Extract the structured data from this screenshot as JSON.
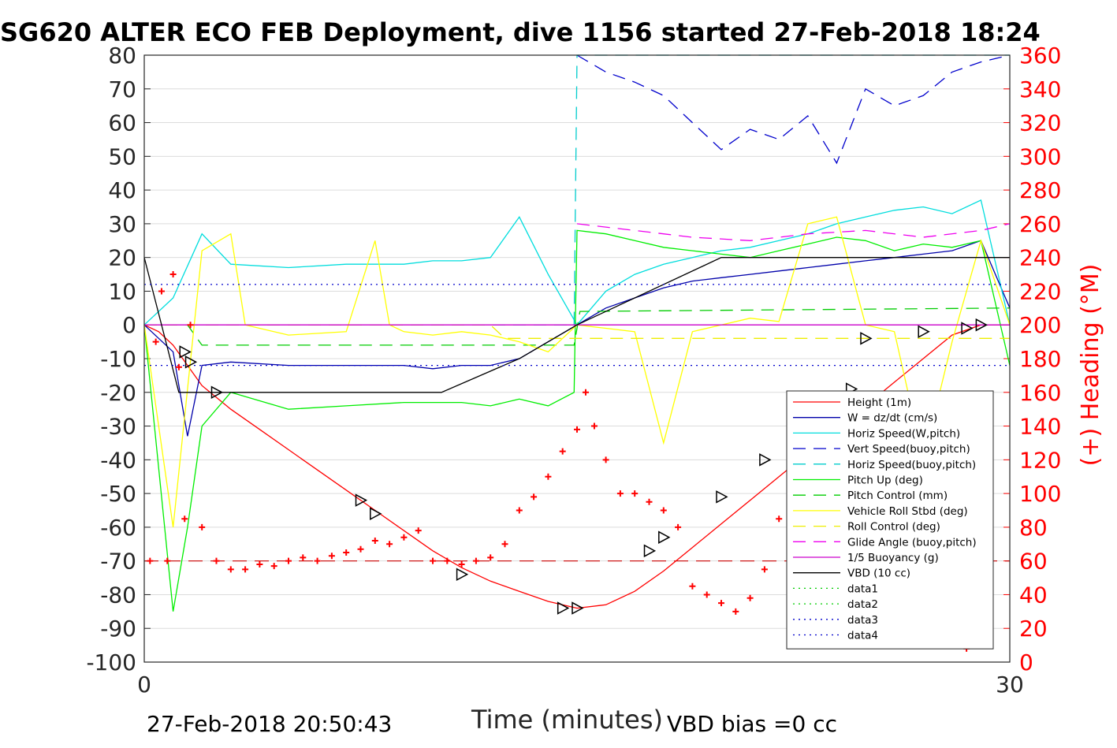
{
  "chart_data": {
    "type": "line",
    "title": "SG620 ALTER ECO FEB Deployment, dive 1156 started 27-Feb-2018 18:24",
    "xlabel": "Time (minutes)",
    "ylabel_right": "(+) Heading (°M)",
    "xlim": [
      0,
      30
    ],
    "ylim": [
      -100,
      80
    ],
    "ylim_right": [
      0,
      360
    ],
    "x_ticks": [
      "0",
      "30"
    ],
    "y_ticks": [
      "80",
      "70",
      "60",
      "50",
      "40",
      "30",
      "20",
      "10",
      "0",
      "-10",
      "-20",
      "-30",
      "-40",
      "-50",
      "-60",
      "-70",
      "-80",
      "-90",
      "-100"
    ],
    "y_right_ticks": [
      "360",
      "340",
      "320",
      "300",
      "280",
      "260",
      "240",
      "220",
      "200",
      "180",
      "160",
      "140",
      "120",
      "100",
      "80",
      "60",
      "40",
      "20",
      "0"
    ],
    "grid": true,
    "legend_position": "lower-right",
    "footer_left": "27-Feb-2018 20:50:43",
    "footer_right": "VBD bias =0 cc",
    "reference_lines": [
      {
        "name": "data1",
        "y": -70,
        "color": "#cc0000",
        "dash": "long"
      }
    ],
    "series": [
      {
        "name": "Height (1m)",
        "color": "#ff0000",
        "style": "solid",
        "x": [
          0,
          0.5,
          1,
          1.5,
          2,
          3,
          4,
          5,
          6,
          7,
          8,
          9,
          10,
          11,
          12,
          13,
          14,
          15,
          16,
          17,
          18,
          19,
          20,
          21,
          22,
          23,
          24,
          25,
          26,
          27,
          28,
          29,
          30
        ],
        "y": [
          0,
          -2,
          -6,
          -12,
          -18,
          -25,
          -31,
          -37,
          -43,
          -49,
          -55,
          -61,
          -67,
          -72,
          -76,
          -79,
          -82,
          -84,
          -83,
          -79,
          -73,
          -66,
          -59,
          -52,
          -45,
          -38,
          -31,
          -24,
          -17,
          -10,
          -3,
          0,
          0
        ]
      },
      {
        "name": "W = dz/dt (cm/s)",
        "color": "#0000aa",
        "style": "solid",
        "x": [
          0,
          1,
          1.5,
          2,
          3,
          5,
          7,
          9,
          10,
          11,
          12,
          13,
          14,
          15,
          16,
          17,
          18,
          19,
          20,
          21,
          22,
          23,
          24,
          25,
          26,
          27,
          28,
          29,
          30
        ],
        "y": [
          0,
          -8,
          -33,
          -12,
          -11,
          -12,
          -12,
          -12,
          -13,
          -12,
          -12,
          -10,
          -5,
          0,
          5,
          8,
          11,
          13,
          14,
          15,
          16,
          17,
          18,
          19,
          20,
          21,
          22,
          25,
          5
        ]
      },
      {
        "name": "Horiz Speed(W,pitch)",
        "color": "#00dddd",
        "style": "solid",
        "x": [
          0,
          1,
          2,
          3,
          5,
          7,
          9,
          10,
          11,
          12,
          13,
          14,
          15,
          16,
          17,
          18,
          19,
          20,
          21,
          22,
          23,
          24,
          25,
          26,
          27,
          28,
          29,
          30
        ],
        "y": [
          0,
          8,
          27,
          18,
          17,
          18,
          18,
          19,
          19,
          20,
          32,
          15,
          0,
          10,
          15,
          18,
          20,
          22,
          23,
          25,
          27,
          30,
          32,
          34,
          35,
          33,
          37,
          0
        ]
      },
      {
        "name": "Vert Speed(buoy,pitch)",
        "color": "#0000cc",
        "style": "dash",
        "x": [
          15,
          16,
          17,
          18,
          19,
          20,
          21,
          22,
          23,
          24,
          25,
          26,
          27,
          28,
          29,
          30
        ],
        "y": [
          80,
          75,
          72,
          68,
          60,
          52,
          58,
          55,
          62,
          48,
          70,
          65,
          68,
          75,
          78,
          80
        ]
      },
      {
        "name": "Horiz Speed(buoy,pitch)",
        "color": "#00cccc",
        "style": "dash",
        "x": [
          0,
          14.9,
          15,
          30
        ],
        "y": [
          0,
          0,
          80,
          80
        ]
      },
      {
        "name": "Pitch Up (deg)",
        "color": "#00ee00",
        "style": "solid",
        "x": [
          0,
          1,
          1.5,
          2,
          3,
          5,
          7,
          9,
          10,
          11,
          12,
          13,
          14,
          14.9,
          15,
          16,
          17,
          18,
          19,
          20,
          21,
          22,
          23,
          24,
          25,
          26,
          27,
          28,
          29,
          30
        ],
        "y": [
          0,
          -85,
          -60,
          -30,
          -20,
          -25,
          -24,
          -23,
          -23,
          -23,
          -24,
          -22,
          -24,
          -20,
          28,
          27,
          25,
          23,
          22,
          21,
          20,
          22,
          24,
          26,
          25,
          22,
          24,
          23,
          25,
          -12
        ]
      },
      {
        "name": "Pitch Control (mm)",
        "color": "#00cc00",
        "style": "dash",
        "x": [
          0,
          1.5,
          2,
          14.9,
          15.1,
          30
        ],
        "y": [
          0,
          0,
          -6,
          -6,
          4,
          5
        ]
      },
      {
        "name": "Vehicle Roll Stbd (deg)",
        "color": "#ffff00",
        "style": "solid",
        "x": [
          0,
          1,
          2,
          3,
          3.5,
          5,
          7,
          8,
          8.5,
          9,
          10,
          11,
          12,
          13,
          14,
          15,
          16,
          17,
          18,
          19,
          20,
          21,
          22,
          23,
          24,
          25,
          26,
          27,
          28,
          29,
          30
        ],
        "y": [
          0,
          -60,
          22,
          27,
          0,
          -3,
          -2,
          25,
          0,
          -2,
          -3,
          -2,
          -3,
          -5,
          -8,
          0,
          -1,
          -2,
          -35,
          -2,
          0,
          2,
          1,
          30,
          32,
          0,
          -2,
          -40,
          -5,
          25,
          0
        ]
      },
      {
        "name": "Roll Control (deg)",
        "color": "#eeee00",
        "style": "dash",
        "x": [
          0,
          12,
          12.5,
          15,
          30
        ],
        "y": [
          0,
          0,
          -4,
          -4,
          -4
        ]
      },
      {
        "name": "Glide Angle (buoy,pitch)",
        "color": "#ee00ee",
        "style": "dash",
        "x": [
          15,
          17,
          19,
          21,
          23,
          25,
          27,
          29,
          30
        ],
        "y": [
          30,
          28,
          26,
          25,
          27,
          28,
          26,
          28,
          30
        ]
      },
      {
        "name": "1/5 Buoyancy (g)",
        "color": "#cc00cc",
        "style": "solid",
        "x": [
          0,
          30
        ],
        "y": [
          0,
          0
        ]
      },
      {
        "name": "VBD (10 cc)",
        "color": "#000000",
        "style": "solid",
        "x": [
          0,
          1.2,
          10.3,
          13,
          15,
          20,
          22,
          30
        ],
        "y": [
          20,
          -20,
          -20,
          -10,
          0,
          20,
          20,
          20
        ]
      },
      {
        "name": "data1",
        "color": "#00cc00",
        "style": "dot",
        "x": [],
        "y": []
      },
      {
        "name": "data2",
        "color": "#00cc00",
        "style": "dot",
        "x": [],
        "y": []
      },
      {
        "name": "data3",
        "color": "#0000cc",
        "style": "dot",
        "x": [
          0,
          30
        ],
        "y": [
          12,
          12
        ]
      },
      {
        "name": "data4",
        "color": "#0000cc",
        "style": "dot",
        "x": [
          0,
          30
        ],
        "y": [
          -12,
          -12
        ]
      }
    ],
    "heading_points": {
      "name": "(+) Heading (°M)",
      "axis": "right",
      "color": "#ff0000",
      "marker": "+",
      "x": [
        0.2,
        0.4,
        0.6,
        0.8,
        1,
        1.2,
        1.4,
        1.6,
        2,
        2.5,
        3,
        3.5,
        4,
        4.5,
        5,
        5.5,
        6,
        6.5,
        7,
        7.5,
        8,
        8.5,
        9,
        9.5,
        10,
        10.5,
        11,
        11.5,
        12,
        12.5,
        13,
        13.5,
        14,
        14.5,
        15,
        15.3,
        15.6,
        16,
        16.5,
        17,
        17.5,
        18,
        18.5,
        19,
        19.5,
        20,
        20.5,
        21,
        21.5,
        22,
        22.5,
        23,
        23.5,
        24,
        24.5,
        25,
        25.5,
        26,
        26.5,
        27,
        27.5,
        28,
        28.5,
        29
      ],
      "y": [
        60,
        190,
        220,
        60,
        230,
        175,
        85,
        200,
        80,
        60,
        55,
        55,
        58,
        57,
        60,
        62,
        60,
        63,
        65,
        67,
        72,
        70,
        74,
        78,
        60,
        60,
        58,
        60,
        62,
        70,
        90,
        98,
        110,
        125,
        138,
        160,
        140,
        120,
        100,
        100,
        95,
        90,
        80,
        45,
        40,
        35,
        30,
        38,
        55,
        85,
        95,
        90,
        98,
        95,
        92,
        80,
        60,
        45,
        35,
        25,
        15,
        10,
        8,
        10
      ]
    },
    "markers": {
      "type": "triangle",
      "x": [
        1.4,
        1.6,
        2.5,
        7.5,
        8,
        11,
        14.5,
        15,
        17.5,
        18,
        20,
        21.5,
        23,
        24.5,
        25,
        27,
        28.5,
        29
      ],
      "y": [
        -8,
        -11,
        -20,
        -52,
        -56,
        -74,
        -84,
        -84,
        -67,
        -63,
        -51,
        -40,
        -24,
        -19,
        -4,
        -2,
        -1,
        0
      ]
    }
  }
}
